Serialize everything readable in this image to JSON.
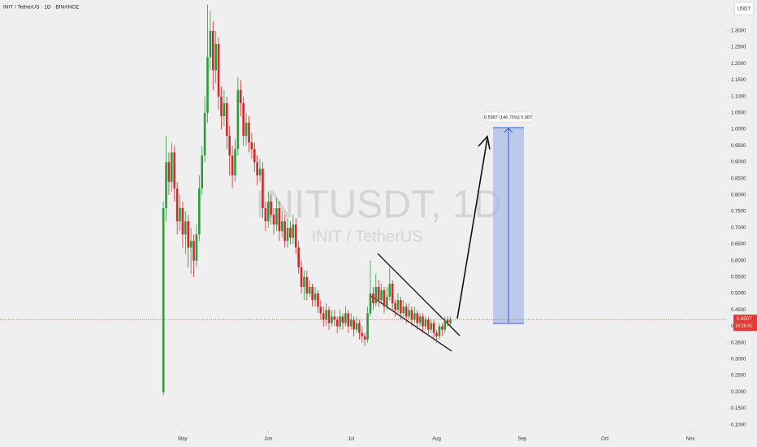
{
  "chart_data": {
    "type": "candlestick",
    "title": "INIT / TetherUS · 1D · BINANCE",
    "watermark": "INITUSDT, 1D",
    "watermark_subtitle": "INIT / TetherUS",
    "currency": "USDT",
    "colors": {
      "up": "#2e9a3a",
      "down": "#d9262b"
    },
    "x": [
      -7,
      -6,
      -5,
      -4,
      -3,
      -2,
      -1,
      0,
      1,
      2,
      3,
      4,
      5,
      6,
      7,
      8,
      9,
      10,
      11,
      12,
      13,
      14,
      15,
      16,
      17,
      18,
      19,
      20,
      21,
      22,
      23,
      24,
      25,
      26,
      27,
      28,
      29,
      30,
      31,
      32,
      33,
      34,
      35,
      36,
      37,
      38,
      39,
      40,
      41,
      42,
      43,
      44,
      45,
      46,
      47,
      48,
      49,
      50,
      51,
      52,
      53,
      54,
      55,
      56,
      57,
      58,
      59,
      60,
      61,
      62,
      63,
      64,
      65,
      66,
      67,
      68,
      69,
      70,
      71,
      72,
      73,
      74,
      75,
      76,
      77,
      78,
      79,
      80,
      81,
      82,
      83,
      84,
      85,
      86,
      87,
      88,
      89,
      90,
      91,
      92,
      93,
      94,
      95,
      96,
      97
    ],
    "open": [
      0.2,
      0.76,
      0.9,
      0.84,
      0.93,
      0.82,
      0.72,
      0.76,
      0.68,
      0.72,
      0.64,
      0.66,
      0.6,
      0.68,
      0.82,
      0.92,
      1.05,
      1.22,
      1.3,
      1.18,
      1.26,
      1.1,
      1.04,
      1.08,
      0.98,
      0.92,
      0.86,
      0.94,
      1.12,
      1.08,
      0.98,
      1.02,
      0.96,
      0.94,
      0.9,
      0.86,
      0.88,
      0.76,
      0.72,
      0.78,
      0.74,
      0.71,
      0.76,
      0.69,
      0.72,
      0.66,
      0.7,
      0.67,
      0.71,
      0.64,
      0.58,
      0.52,
      0.55,
      0.5,
      0.52,
      0.48,
      0.5,
      0.46,
      0.44,
      0.42,
      0.45,
      0.41,
      0.43,
      0.42,
      0.4,
      0.43,
      0.41,
      0.44,
      0.4,
      0.42,
      0.39,
      0.41,
      0.38,
      0.37,
      0.36,
      0.44,
      0.5,
      0.47,
      0.52,
      0.48,
      0.51,
      0.46,
      0.49,
      0.53,
      0.47,
      0.45,
      0.48,
      0.44,
      0.46,
      0.43,
      0.45,
      0.42,
      0.44,
      0.41,
      0.43,
      0.4,
      0.42,
      0.39,
      0.41,
      0.38,
      0.37,
      0.4,
      0.39,
      0.42,
      0.41
    ],
    "high": [
      0.78,
      0.98,
      0.93,
      0.96,
      0.95,
      0.84,
      0.8,
      0.78,
      0.75,
      0.74,
      0.7,
      0.68,
      0.71,
      0.86,
      0.95,
      1.1,
      1.38,
      1.36,
      1.33,
      1.3,
      1.28,
      1.13,
      1.12,
      1.1,
      1.01,
      0.95,
      0.97,
      1.16,
      1.15,
      1.1,
      1.05,
      1.04,
      0.99,
      0.96,
      0.92,
      0.91,
      0.9,
      0.78,
      0.81,
      0.8,
      0.76,
      0.79,
      0.78,
      0.75,
      0.74,
      0.73,
      0.72,
      0.74,
      0.73,
      0.66,
      0.6,
      0.57,
      0.57,
      0.54,
      0.53,
      0.52,
      0.51,
      0.48,
      0.46,
      0.47,
      0.46,
      0.45,
      0.45,
      0.43,
      0.45,
      0.44,
      0.46,
      0.45,
      0.44,
      0.43,
      0.43,
      0.42,
      0.4,
      0.38,
      0.46,
      0.6,
      0.52,
      0.56,
      0.54,
      0.53,
      0.52,
      0.52,
      0.58,
      0.54,
      0.48,
      0.5,
      0.49,
      0.48,
      0.47,
      0.47,
      0.46,
      0.46,
      0.45,
      0.44,
      0.44,
      0.43,
      0.43,
      0.42,
      0.42,
      0.39,
      0.41,
      0.41,
      0.43,
      0.43,
      0.43
    ],
    "low": [
      0.19,
      0.72,
      0.8,
      0.81,
      0.78,
      0.68,
      0.69,
      0.64,
      0.62,
      0.58,
      0.56,
      0.55,
      0.58,
      0.66,
      0.8,
      0.9,
      1.02,
      1.18,
      1.12,
      1.14,
      1.06,
      1.0,
      1.01,
      0.94,
      0.86,
      0.82,
      0.84,
      0.92,
      1.04,
      0.95,
      0.95,
      0.93,
      0.91,
      0.87,
      0.83,
      0.84,
      0.73,
      0.69,
      0.7,
      0.71,
      0.68,
      0.69,
      0.66,
      0.67,
      0.64,
      0.64,
      0.65,
      0.65,
      0.62,
      0.56,
      0.5,
      0.48,
      0.48,
      0.49,
      0.46,
      0.46,
      0.44,
      0.42,
      0.4,
      0.4,
      0.39,
      0.4,
      0.4,
      0.38,
      0.39,
      0.39,
      0.4,
      0.38,
      0.39,
      0.37,
      0.38,
      0.36,
      0.35,
      0.34,
      0.35,
      0.43,
      0.45,
      0.46,
      0.46,
      0.47,
      0.44,
      0.45,
      0.48,
      0.45,
      0.43,
      0.44,
      0.42,
      0.43,
      0.41,
      0.42,
      0.4,
      0.41,
      0.39,
      0.4,
      0.38,
      0.39,
      0.37,
      0.38,
      0.36,
      0.35,
      0.36,
      0.37,
      0.38,
      0.4,
      0.4
    ],
    "close": [
      0.76,
      0.9,
      0.84,
      0.93,
      0.82,
      0.72,
      0.76,
      0.68,
      0.72,
      0.64,
      0.66,
      0.6,
      0.68,
      0.82,
      0.92,
      1.05,
      1.22,
      1.3,
      1.18,
      1.26,
      1.1,
      1.04,
      1.08,
      0.98,
      0.92,
      0.86,
      0.94,
      1.12,
      1.08,
      0.98,
      1.02,
      0.96,
      0.94,
      0.9,
      0.86,
      0.88,
      0.76,
      0.72,
      0.78,
      0.74,
      0.71,
      0.76,
      0.69,
      0.72,
      0.66,
      0.7,
      0.67,
      0.71,
      0.64,
      0.58,
      0.52,
      0.55,
      0.5,
      0.52,
      0.48,
      0.5,
      0.46,
      0.44,
      0.42,
      0.45,
      0.41,
      0.43,
      0.42,
      0.4,
      0.43,
      0.41,
      0.44,
      0.4,
      0.42,
      0.39,
      0.41,
      0.38,
      0.37,
      0.36,
      0.44,
      0.5,
      0.47,
      0.52,
      0.48,
      0.51,
      0.46,
      0.49,
      0.53,
      0.47,
      0.45,
      0.48,
      0.44,
      0.46,
      0.43,
      0.45,
      0.42,
      0.44,
      0.41,
      0.43,
      0.4,
      0.42,
      0.39,
      0.41,
      0.38,
      0.37,
      0.4,
      0.39,
      0.42,
      0.41,
      0.4207
    ],
    "xlim": [
      -66.2,
      197.2
    ],
    "xticks": [
      {
        "value": 0,
        "label": "May"
      },
      {
        "value": 31,
        "label": "Jun"
      },
      {
        "value": 61,
        "label": "Jul"
      },
      {
        "value": 92,
        "label": "Aug"
      },
      {
        "value": 123,
        "label": "Sep"
      },
      {
        "value": 153,
        "label": "Oct"
      },
      {
        "value": 184,
        "label": "Nov"
      }
    ],
    "ylim": [
      0.082,
      1.394
    ],
    "yticks": [
      {
        "value": 0.1,
        "label": "0.1000"
      },
      {
        "value": 0.15,
        "label": "0.1500"
      },
      {
        "value": 0.2,
        "label": "0.2000"
      },
      {
        "value": 0.25,
        "label": "0.2500"
      },
      {
        "value": 0.3,
        "label": "0.3000"
      },
      {
        "value": 0.35,
        "label": "0.3500"
      },
      {
        "value": 0.4,
        "label": "0.4000"
      },
      {
        "value": 0.45,
        "label": "0.4500"
      },
      {
        "value": 0.5,
        "label": "0.5000"
      },
      {
        "value": 0.55,
        "label": "0.5500"
      },
      {
        "value": 0.6,
        "label": "0.6000"
      },
      {
        "value": 0.65,
        "label": "0.6500"
      },
      {
        "value": 0.7,
        "label": "0.7000"
      },
      {
        "value": 0.75,
        "label": "0.7500"
      },
      {
        "value": 0.8,
        "label": "0.8000"
      },
      {
        "value": 0.85,
        "label": "0.8500"
      },
      {
        "value": 0.9,
        "label": "0.9000"
      },
      {
        "value": 0.95,
        "label": "0.9500"
      },
      {
        "value": 1.0,
        "label": "1.0000"
      },
      {
        "value": 1.05,
        "label": "1.0500"
      },
      {
        "value": 1.1,
        "label": "1.1000"
      },
      {
        "value": 1.15,
        "label": "1.1500"
      },
      {
        "value": 1.2,
        "label": "1.2000"
      },
      {
        "value": 1.25,
        "label": "1.2500"
      },
      {
        "value": 1.3,
        "label": "1.3000"
      }
    ],
    "grid": false,
    "last_price": 0.4207,
    "countdown": "19:26:41",
    "target_label": "0.5987 (146.75%) 5,987"
  }
}
